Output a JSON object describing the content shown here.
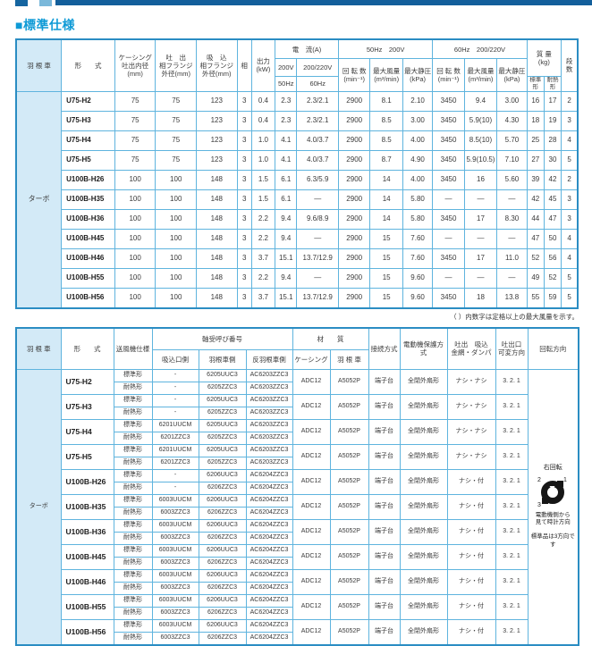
{
  "page": {
    "section_title": "■標準仕様",
    "footnote": "（ ）内数字は定格以上の最大風量を示す。"
  },
  "colors": {
    "accent_blue": "#0e9ad6",
    "grid_blue": "#5fb4de",
    "outer_border_blue": "#2b8dc3",
    "header_fill_blue": "#d3eaf7",
    "topbar_dark": "#135f9b",
    "topbar_light": "#7ab8da"
  },
  "table1": {
    "header": {
      "impeller": "羽 根 車",
      "model": "形　　式",
      "casing_bore": "ケーシング\n吐出内径\n(mm)",
      "discharge_flange": "吐　出\n相フランジ\n外径(mm)",
      "suction_flange": "吸　込\n相フランジ\n外径(mm)",
      "phase": "相",
      "output": "出力\n(kW)",
      "current_group": "電　流(A)",
      "v200": "200V",
      "v200_220": "200/220V",
      "hz50": "50Hz",
      "hz60": "60Hz",
      "group50": "50Hz　200V",
      "group60": "60Hz　200/220V",
      "speed": "回 転 数\n(min⁻¹)",
      "flow": "最大風量\n(m³/min)",
      "press": "最大静圧\n(kPa)",
      "mass": "質 量\n(kg)",
      "mass_std": "標準形",
      "mass_heat": "耐熱形",
      "stages": "段数"
    },
    "impeller_value": "ターボ",
    "rows": [
      {
        "model": "U75-H2",
        "casing": "75",
        "discharge": "75",
        "suction": "123",
        "phase": "3",
        "output": "0.4",
        "a200": "2.3",
        "a200_220": "2.3/2.1",
        "speed50": "2900",
        "flow50": "8.1",
        "press50": "2.10",
        "speed60": "3450",
        "flow60": "9.4",
        "press60": "3.00",
        "mass_std": "16",
        "mass_heat": "17",
        "stages": "2"
      },
      {
        "model": "U75-H3",
        "casing": "75",
        "discharge": "75",
        "suction": "123",
        "phase": "3",
        "output": "0.4",
        "a200": "2.3",
        "a200_220": "2.3/2.1",
        "speed50": "2900",
        "flow50": "8.5",
        "press50": "3.00",
        "speed60": "3450",
        "flow60": "5.9(10)",
        "press60": "4.30",
        "mass_std": "18",
        "mass_heat": "19",
        "stages": "3"
      },
      {
        "model": "U75-H4",
        "casing": "75",
        "discharge": "75",
        "suction": "123",
        "phase": "3",
        "output": "1.0",
        "a200": "4.1",
        "a200_220": "4.0/3.7",
        "speed50": "2900",
        "flow50": "8.5",
        "press50": "4.00",
        "speed60": "3450",
        "flow60": "8.5(10)",
        "press60": "5.70",
        "mass_std": "25",
        "mass_heat": "28",
        "stages": "4"
      },
      {
        "model": "U75-H5",
        "casing": "75",
        "discharge": "75",
        "suction": "123",
        "phase": "3",
        "output": "1.0",
        "a200": "4.1",
        "a200_220": "4.0/3.7",
        "speed50": "2900",
        "flow50": "8.7",
        "press50": "4.90",
        "speed60": "3450",
        "flow60": "5.9(10.5)",
        "press60": "7.10",
        "mass_std": "27",
        "mass_heat": "30",
        "stages": "5"
      },
      {
        "model": "U100B-H26",
        "casing": "100",
        "discharge": "100",
        "suction": "148",
        "phase": "3",
        "output": "1.5",
        "a200": "6.1",
        "a200_220": "6.3/5.9",
        "speed50": "2900",
        "flow50": "14",
        "press50": "4.00",
        "speed60": "3450",
        "flow60": "16",
        "press60": "5.60",
        "mass_std": "39",
        "mass_heat": "42",
        "stages": "2"
      },
      {
        "model": "U100B-H35",
        "casing": "100",
        "discharge": "100",
        "suction": "148",
        "phase": "3",
        "output": "1.5",
        "a200": "6.1",
        "a200_220": "—",
        "speed50": "2900",
        "flow50": "14",
        "press50": "5.80",
        "speed60": "—",
        "flow60": "—",
        "press60": "—",
        "mass_std": "42",
        "mass_heat": "45",
        "stages": "3"
      },
      {
        "model": "U100B-H36",
        "casing": "100",
        "discharge": "100",
        "suction": "148",
        "phase": "3",
        "output": "2.2",
        "a200": "9.4",
        "a200_220": "9.6/8.9",
        "speed50": "2900",
        "flow50": "14",
        "press50": "5.80",
        "speed60": "3450",
        "flow60": "17",
        "press60": "8.30",
        "mass_std": "44",
        "mass_heat": "47",
        "stages": "3"
      },
      {
        "model": "U100B-H45",
        "casing": "100",
        "discharge": "100",
        "suction": "148",
        "phase": "3",
        "output": "2.2",
        "a200": "9.4",
        "a200_220": "—",
        "speed50": "2900",
        "flow50": "15",
        "press50": "7.60",
        "speed60": "—",
        "flow60": "—",
        "press60": "—",
        "mass_std": "47",
        "mass_heat": "50",
        "stages": "4"
      },
      {
        "model": "U100B-H46",
        "casing": "100",
        "discharge": "100",
        "suction": "148",
        "phase": "3",
        "output": "3.7",
        "a200": "15.1",
        "a200_220": "13.7/12.9",
        "speed50": "2900",
        "flow50": "15",
        "press50": "7.60",
        "speed60": "3450",
        "flow60": "17",
        "press60": "11.0",
        "mass_std": "52",
        "mass_heat": "56",
        "stages": "4"
      },
      {
        "model": "U100B-H55",
        "casing": "100",
        "discharge": "100",
        "suction": "148",
        "phase": "3",
        "output": "2.2",
        "a200": "9.4",
        "a200_220": "—",
        "speed50": "2900",
        "flow50": "15",
        "press50": "9.60",
        "speed60": "—",
        "flow60": "—",
        "press60": "—",
        "mass_std": "49",
        "mass_heat": "52",
        "stages": "5"
      },
      {
        "model": "U100B-H56",
        "casing": "100",
        "discharge": "100",
        "suction": "148",
        "phase": "3",
        "output": "3.7",
        "a200": "15.1",
        "a200_220": "13.7/12.9",
        "speed50": "2900",
        "flow50": "15",
        "press50": "9.60",
        "speed60": "3450",
        "flow60": "18",
        "press60": "13.8",
        "mass_std": "55",
        "mass_heat": "59",
        "stages": "5"
      }
    ]
  },
  "table2": {
    "header": {
      "impeller": "羽 根 車",
      "model": "形　　式",
      "blower_spec": "送風機仕様",
      "bearing_group": "軸受呼び番号",
      "bearing_suction": "吸込口側",
      "bearing_impeller": "羽根車側",
      "bearing_opposite": "反羽根車側",
      "material_group": "材　　質",
      "material_casing": "ケーシング",
      "material_impeller": "羽 根 車",
      "connection": "接続方式",
      "protection": "電動機保護方式",
      "screen_damper": "吐出　吸込\n金網・ダンパ",
      "outlet_dir": "吐出口\n可変方向",
      "rotation": "回転方向"
    },
    "impeller_value": "ターボ",
    "rotation_note": {
      "title": "右回転",
      "n1": "1",
      "n2": "2",
      "n3": "3",
      "caption": "電動機側から\n見て時計方向",
      "note": "標準品は3方向です"
    },
    "rows": [
      {
        "model": "U75-H2",
        "variants": [
          {
            "spec": "標準形",
            "suction": "-",
            "imp": "6205UUC3",
            "anti": "AC6203ZZC3"
          },
          {
            "spec": "耐熱形",
            "suction": "-",
            "imp": "6205ZZC3",
            "anti": "AC6203ZZC3"
          }
        ],
        "casing": "ADC12",
        "material": "A5052P",
        "connection": "端子台",
        "protection": "全閉外扇形",
        "screen": "ナシ・ナシ",
        "outlet": "3. 2. 1"
      },
      {
        "model": "U75-H3",
        "variants": [
          {
            "spec": "標準形",
            "suction": "-",
            "imp": "6205UUC3",
            "anti": "AC6203ZZC3"
          },
          {
            "spec": "耐熱形",
            "suction": "-",
            "imp": "6205ZZC3",
            "anti": "AC6203ZZC3"
          }
        ],
        "casing": "ADC12",
        "material": "A5052P",
        "connection": "端子台",
        "protection": "全閉外扇形",
        "screen": "ナシ・ナシ",
        "outlet": "3. 2. 1"
      },
      {
        "model": "U75-H4",
        "variants": [
          {
            "spec": "標準形",
            "suction": "6201UUCM",
            "imp": "6205UUC3",
            "anti": "AC6203ZZC3"
          },
          {
            "spec": "耐熱形",
            "suction": "6201ZZC3",
            "imp": "6205ZZC3",
            "anti": "AC6203ZZC3"
          }
        ],
        "casing": "ADC12",
        "material": "A5052P",
        "connection": "端子台",
        "protection": "全閉外扇形",
        "screen": "ナシ・ナシ",
        "outlet": "3. 2. 1"
      },
      {
        "model": "U75-H5",
        "variants": [
          {
            "spec": "標準形",
            "suction": "6201UUCM",
            "imp": "6205UUC3",
            "anti": "AC6203ZZC3"
          },
          {
            "spec": "耐熱形",
            "suction": "6201ZZC3",
            "imp": "6205ZZC3",
            "anti": "AC6203ZZC3"
          }
        ],
        "casing": "ADC12",
        "material": "A5052P",
        "connection": "端子台",
        "protection": "全閉外扇形",
        "screen": "ナシ・ナシ",
        "outlet": "3. 2. 1"
      },
      {
        "model": "U100B-H26",
        "variants": [
          {
            "spec": "標準形",
            "suction": "-",
            "imp": "6206UUC3",
            "anti": "AC6204ZZC3"
          },
          {
            "spec": "耐熱形",
            "suction": "-",
            "imp": "6206ZZC3",
            "anti": "AC6204ZZC3"
          }
        ],
        "casing": "ADC12",
        "material": "A5052P",
        "connection": "端子台",
        "protection": "全閉外扇形",
        "screen": "ナシ・付",
        "outlet": "3. 2. 1"
      },
      {
        "model": "U100B-H35",
        "variants": [
          {
            "spec": "標準形",
            "suction": "6003UUCM",
            "imp": "6206UUC3",
            "anti": "AC6204ZZC3"
          },
          {
            "spec": "耐熱形",
            "suction": "6003ZZC3",
            "imp": "6206ZZC3",
            "anti": "AC6204ZZC3"
          }
        ],
        "casing": "ADC12",
        "material": "A5052P",
        "connection": "端子台",
        "protection": "全閉外扇形",
        "screen": "ナシ・付",
        "outlet": "3. 2. 1"
      },
      {
        "model": "U100B-H36",
        "variants": [
          {
            "spec": "標準形",
            "suction": "6003UUCM",
            "imp": "6206UUC3",
            "anti": "AC6204ZZC3"
          },
          {
            "spec": "耐熱形",
            "suction": "6003ZZC3",
            "imp": "6206ZZC3",
            "anti": "AC6204ZZC3"
          }
        ],
        "casing": "ADC12",
        "material": "A5052P",
        "connection": "端子台",
        "protection": "全閉外扇形",
        "screen": "ナシ・付",
        "outlet": "3. 2. 1"
      },
      {
        "model": "U100B-H45",
        "variants": [
          {
            "spec": "標準形",
            "suction": "6003UUCM",
            "imp": "6206UUC3",
            "anti": "AC6204ZZC3"
          },
          {
            "spec": "耐熱形",
            "suction": "6003ZZC3",
            "imp": "6206ZZC3",
            "anti": "AC6204ZZC3"
          }
        ],
        "casing": "ADC12",
        "material": "A5052P",
        "connection": "端子台",
        "protection": "全閉外扇形",
        "screen": "ナシ・付",
        "outlet": "3. 2. 1"
      },
      {
        "model": "U100B-H46",
        "variants": [
          {
            "spec": "標準形",
            "suction": "6003UUCM",
            "imp": "6206UUC3",
            "anti": "AC6204ZZC3"
          },
          {
            "spec": "耐熱形",
            "suction": "6003ZZC3",
            "imp": "6206ZZC3",
            "anti": "AC6204ZZC3"
          }
        ],
        "casing": "ADC12",
        "material": "A5052P",
        "connection": "端子台",
        "protection": "全閉外扇形",
        "screen": "ナシ・付",
        "outlet": "3. 2. 1"
      },
      {
        "model": "U100B-H55",
        "variants": [
          {
            "spec": "標準形",
            "suction": "6003UUCM",
            "imp": "6206UUC3",
            "anti": "AC6204ZZC3"
          },
          {
            "spec": "耐熱形",
            "suction": "6003ZZC3",
            "imp": "6206ZZC3",
            "anti": "AC6204ZZC3"
          }
        ],
        "casing": "ADC12",
        "material": "A5052P",
        "connection": "端子台",
        "protection": "全閉外扇形",
        "screen": "ナシ・付",
        "outlet": "3. 2. 1"
      },
      {
        "model": "U100B-H56",
        "variants": [
          {
            "spec": "標準形",
            "suction": "6003UUCM",
            "imp": "6206UUC3",
            "anti": "AC6204ZZC3"
          },
          {
            "spec": "耐熱形",
            "suction": "6003ZZC3",
            "imp": "6206ZZC3",
            "anti": "AC6204ZZC3"
          }
        ],
        "casing": "ADC12",
        "material": "A5052P",
        "connection": "端子台",
        "protection": "全閉外扇形",
        "screen": "ナシ・付",
        "outlet": "3. 2. 1"
      }
    ]
  }
}
